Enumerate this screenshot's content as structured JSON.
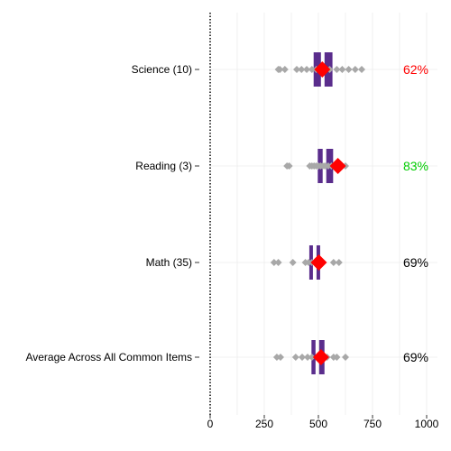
{
  "chart_data": {
    "type": "boxplot",
    "xlim": [
      0,
      1000
    ],
    "x_ticks": [
      "0",
      "250",
      "500",
      "750",
      "1000"
    ],
    "grid": true,
    "categories": [
      {
        "label": "Science (10)",
        "box_q1": 478,
        "box_median": 520,
        "box_q3": 565,
        "highlight_value": 518,
        "percent": "62%",
        "percent_color": "#ff0000",
        "dots": [
          315,
          322,
          345,
          400,
          422,
          446,
          470,
          490,
          552,
          585,
          610,
          640,
          670,
          700
        ]
      },
      {
        "label": "Reading (3)",
        "box_q1": 497,
        "box_median": 528,
        "box_q3": 568,
        "highlight_value": 590,
        "percent": "83%",
        "percent_color": "#00cc00",
        "dots": [
          355,
          365,
          460,
          470,
          480,
          490,
          500,
          510,
          520,
          530,
          545,
          560,
          610,
          625
        ]
      },
      {
        "label": "Math (35)",
        "box_q1": 458,
        "box_median": 483,
        "box_q3": 508,
        "highlight_value": 502,
        "percent": "69%",
        "percent_color": "#000000",
        "dots": [
          295,
          315,
          382,
          440,
          455,
          470,
          520,
          570,
          595
        ]
      },
      {
        "label": "Average Across All Common Items",
        "box_q1": 468,
        "box_median": 495,
        "box_q3": 528,
        "highlight_value": 512,
        "percent": "69%",
        "percent_color": "#000000",
        "dots": [
          308,
          325,
          395,
          425,
          450,
          470,
          500,
          540,
          570,
          585,
          625
        ]
      }
    ]
  },
  "colors": {
    "box": "#5a2d8c",
    "dots": "#a8a8a8",
    "highlight": "#ff0000",
    "grid": "#ececec",
    "axis": "#000000"
  }
}
